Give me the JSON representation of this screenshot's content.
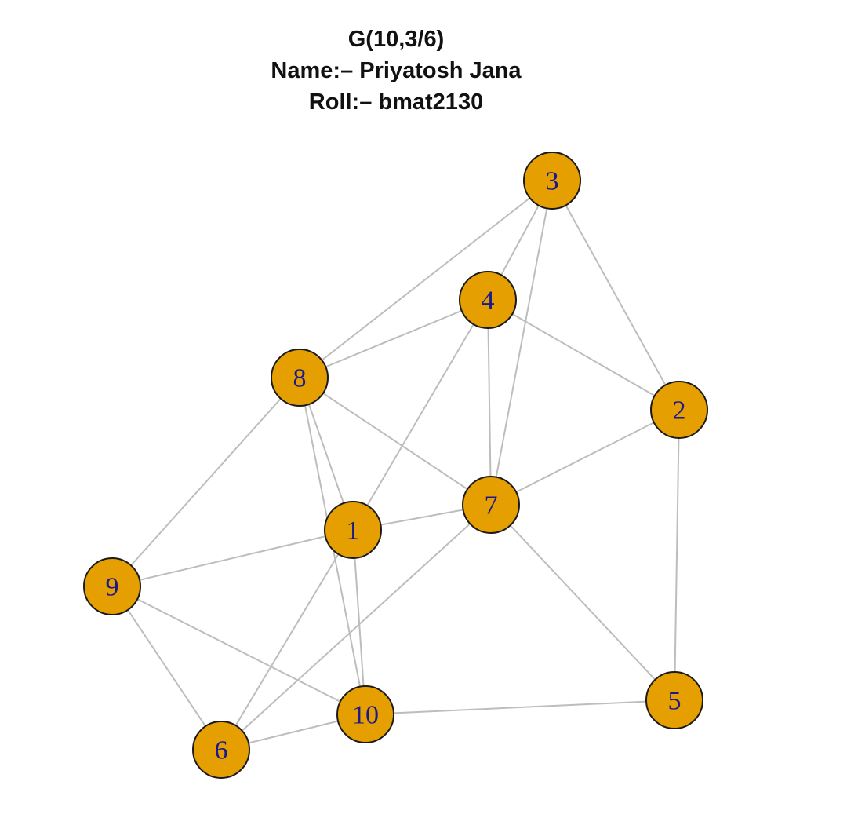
{
  "title": {
    "line1": "G(10,3/6)",
    "line2": "Name:– Priyatosh Jana",
    "line3": "Roll:– bmat2130"
  },
  "graph": {
    "node_fill": "#E69F00",
    "node_border": "#1a1a1a",
    "label_color": "#1a1a8c",
    "edge_color": "#bdbdbd",
    "nodes": [
      {
        "id": "1",
        "label": "1"
      },
      {
        "id": "2",
        "label": "2"
      },
      {
        "id": "3",
        "label": "3"
      },
      {
        "id": "4",
        "label": "4"
      },
      {
        "id": "5",
        "label": "5"
      },
      {
        "id": "6",
        "label": "6"
      },
      {
        "id": "7",
        "label": "7"
      },
      {
        "id": "8",
        "label": "8"
      },
      {
        "id": "9",
        "label": "9"
      },
      {
        "id": "10",
        "label": "10"
      }
    ],
    "edges": [
      [
        "3",
        "8"
      ],
      [
        "3",
        "4"
      ],
      [
        "3",
        "7"
      ],
      [
        "3",
        "2"
      ],
      [
        "4",
        "8"
      ],
      [
        "4",
        "2"
      ],
      [
        "4",
        "7"
      ],
      [
        "4",
        "1"
      ],
      [
        "8",
        "7"
      ],
      [
        "8",
        "1"
      ],
      [
        "8",
        "10"
      ],
      [
        "8",
        "9"
      ],
      [
        "2",
        "7"
      ],
      [
        "2",
        "5"
      ],
      [
        "7",
        "1"
      ],
      [
        "7",
        "6"
      ],
      [
        "7",
        "5"
      ],
      [
        "1",
        "9"
      ],
      [
        "1",
        "6"
      ],
      [
        "1",
        "10"
      ],
      [
        "9",
        "6"
      ],
      [
        "9",
        "10"
      ],
      [
        "6",
        "10"
      ],
      [
        "10",
        "5"
      ]
    ]
  }
}
